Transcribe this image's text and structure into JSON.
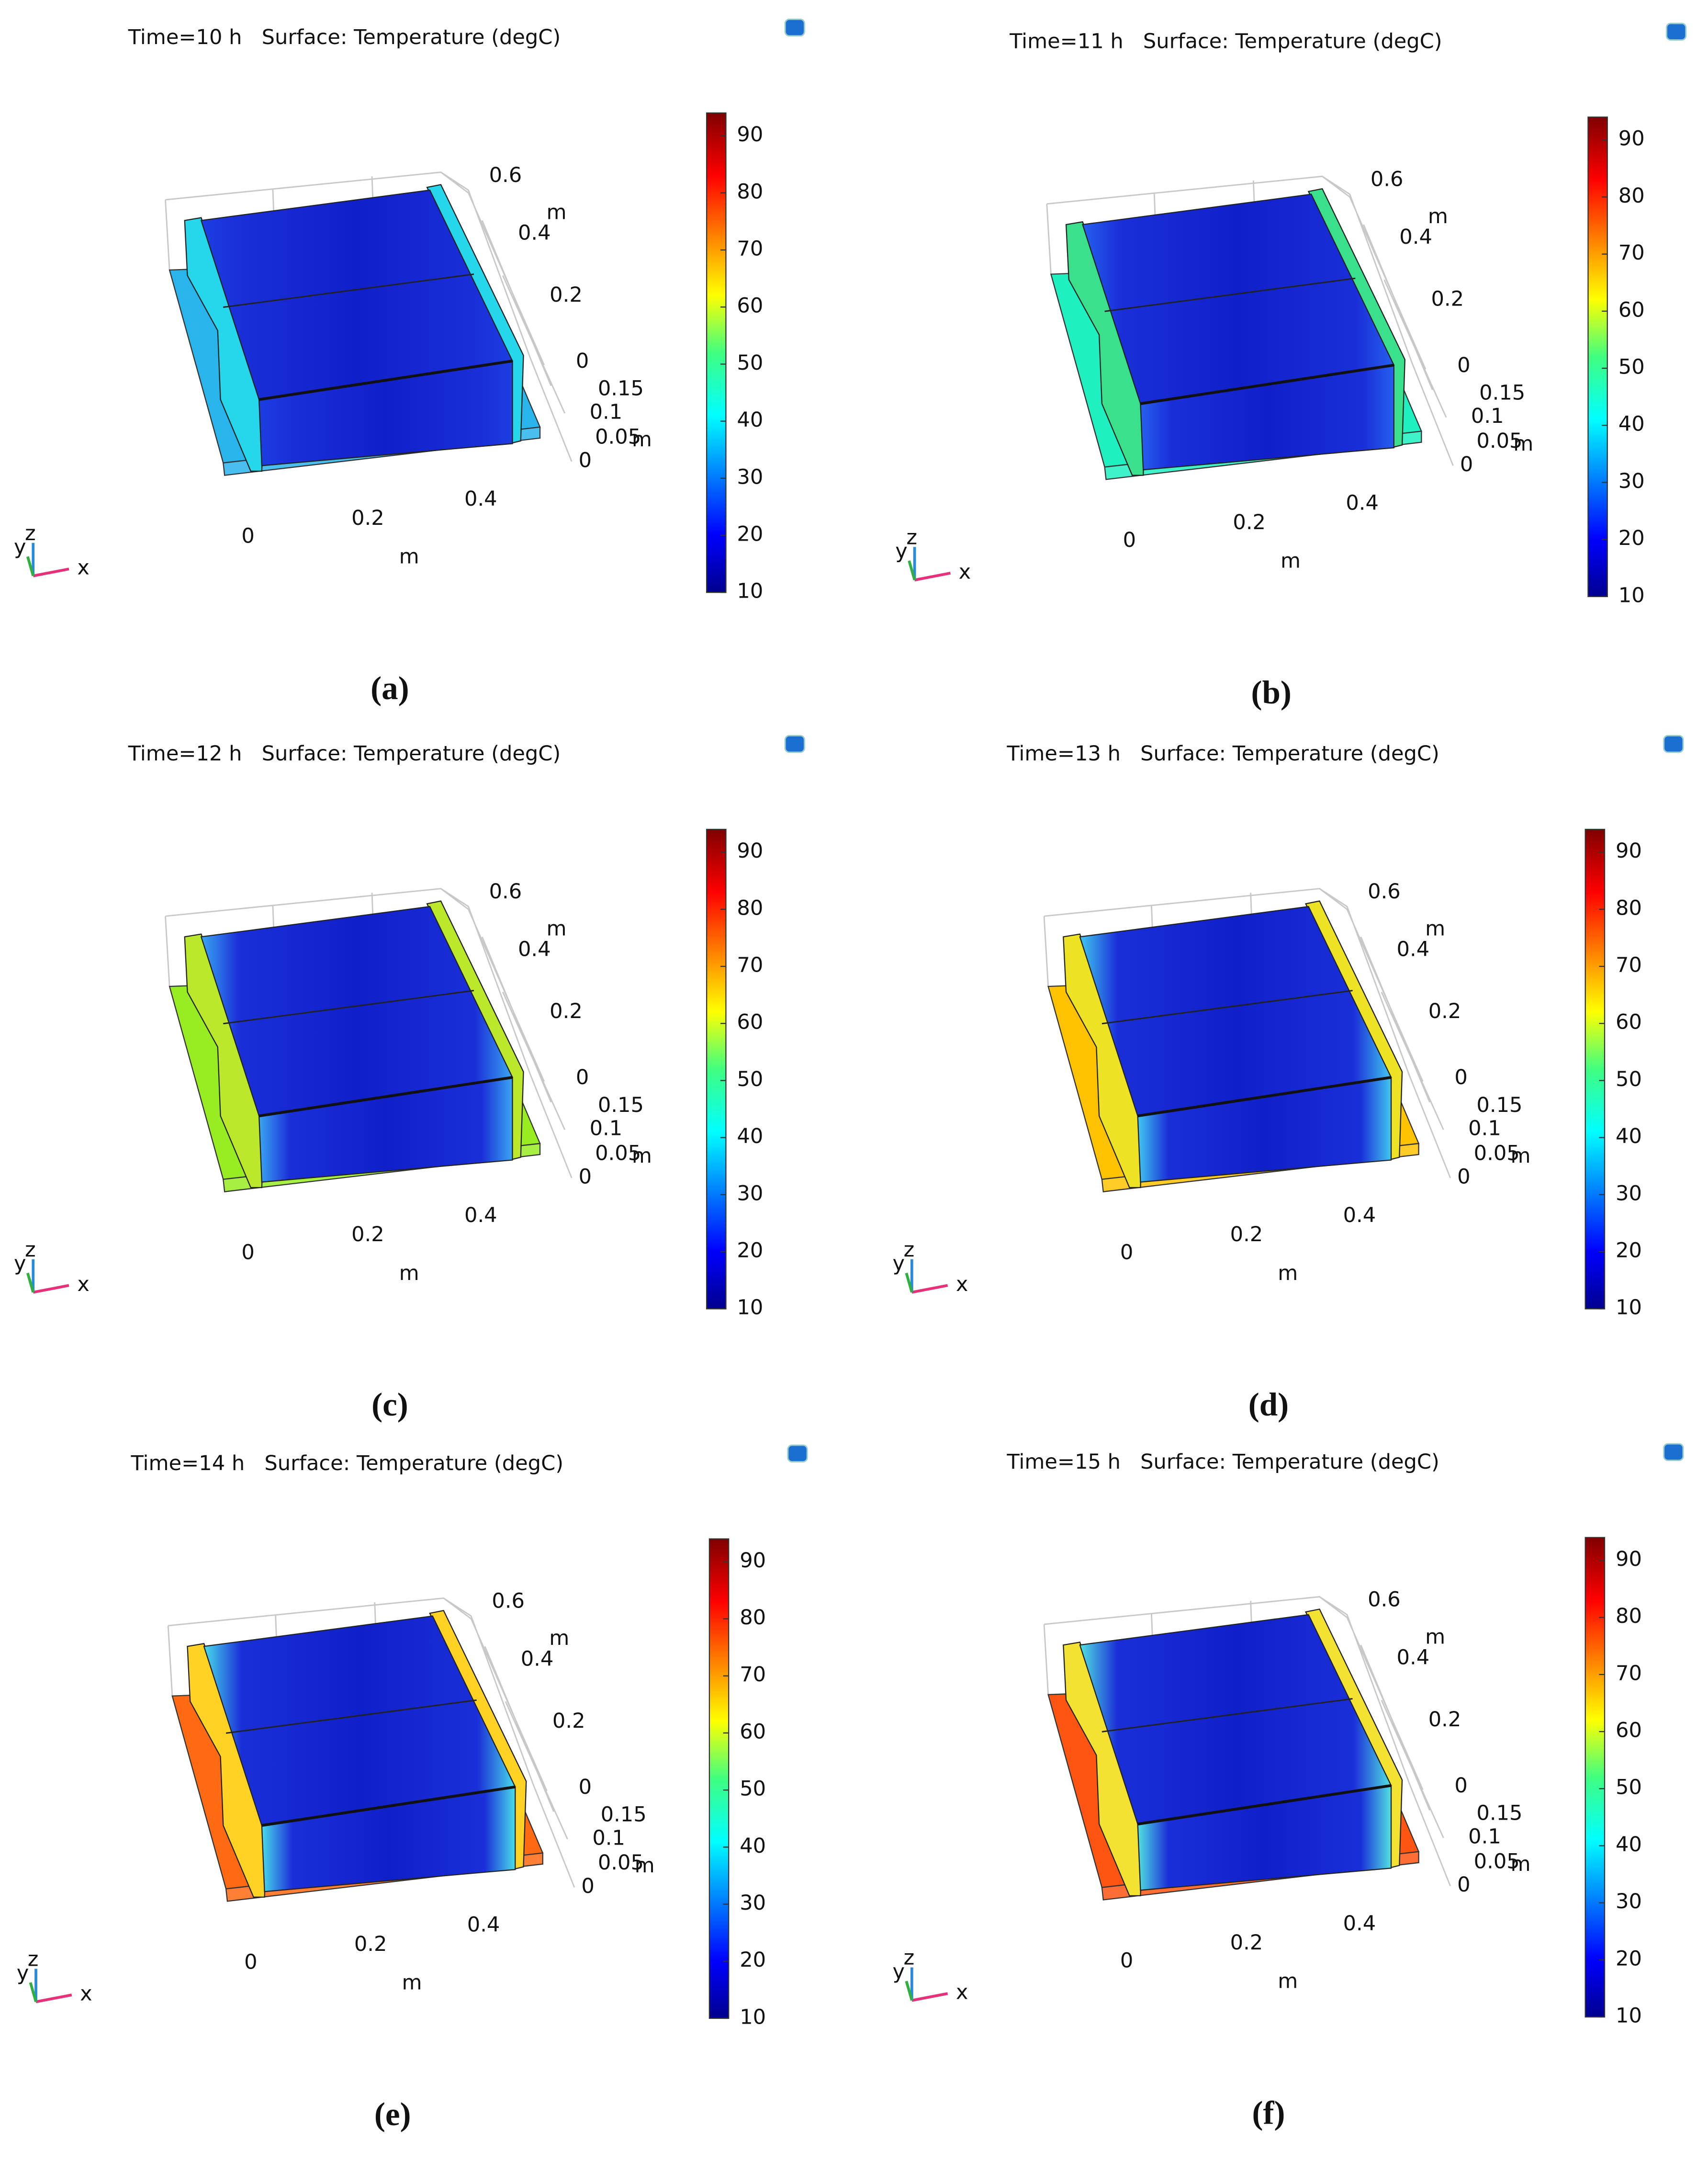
{
  "panels": [
    {
      "title": "Time=10 h   Surface: Temperature (degC)",
      "caption": "(a)",
      "colorbar_range": [
        10,
        94
      ],
      "colorbar_ticks": [
        10,
        20,
        30,
        40,
        50,
        60,
        70,
        80,
        90
      ],
      "x_ticks": [
        0,
        0.2,
        0.4
      ],
      "y_ticks": [
        0.6,
        0.4,
        0.2,
        0
      ],
      "z_ticks": [
        0.15,
        0.1,
        0.05,
        0
      ],
      "unit": "m",
      "triad": [
        "x",
        "y",
        "z"
      ],
      "plate_color": "#2ab4ec",
      "wall_color": "#26d6ea",
      "edge_color": "#1c3ee0"
    },
    {
      "title": "Time=11 h   Surface: Temperature (degC)",
      "caption": "(b)",
      "colorbar_range": [
        10,
        94
      ],
      "colorbar_ticks": [
        10,
        20,
        30,
        40,
        50,
        60,
        70,
        80,
        90
      ],
      "x_ticks": [
        0,
        0.2,
        0.4
      ],
      "y_ticks": [
        0.6,
        0.4,
        0.2,
        0
      ],
      "z_ticks": [
        0.15,
        0.1,
        0.05,
        0
      ],
      "unit": "m",
      "triad": [
        "x",
        "y",
        "z"
      ],
      "plate_color": "#1ff0c0",
      "wall_color": "#3ae08c",
      "edge_color": "#2660ee"
    },
    {
      "title": "Time=12 h   Surface: Temperature (degC)",
      "caption": "(c)",
      "colorbar_range": [
        10,
        94
      ],
      "colorbar_ticks": [
        10,
        20,
        30,
        40,
        50,
        60,
        70,
        80,
        90
      ],
      "x_ticks": [
        0,
        0.2,
        0.4
      ],
      "y_ticks": [
        0.6,
        0.4,
        0.2,
        0
      ],
      "z_ticks": [
        0.15,
        0.1,
        0.05,
        0
      ],
      "unit": "m",
      "triad": [
        "x",
        "y",
        "z"
      ],
      "plate_color": "#98ec22",
      "wall_color": "#bce82c",
      "edge_color": "#3aa6f2"
    },
    {
      "title": "Time=13 h   Surface: Temperature (degC)",
      "caption": "(d)",
      "colorbar_range": [
        10,
        94
      ],
      "colorbar_ticks": [
        10,
        20,
        30,
        40,
        50,
        60,
        70,
        80,
        90
      ],
      "x_ticks": [
        0,
        0.2,
        0.4
      ],
      "y_ticks": [
        0.6,
        0.4,
        0.2,
        0
      ],
      "z_ticks": [
        0.15,
        0.1,
        0.05,
        0
      ],
      "unit": "m",
      "triad": [
        "x",
        "y",
        "z"
      ],
      "plate_color": "#ffc200",
      "wall_color": "#eee224",
      "edge_color": "#40c8f0"
    },
    {
      "title": "Time=14 h   Surface: Temperature (degC)",
      "caption": "(e)",
      "colorbar_range": [
        10,
        94
      ],
      "colorbar_ticks": [
        10,
        20,
        30,
        40,
        50,
        60,
        70,
        80,
        90
      ],
      "x_ticks": [
        0,
        0.2,
        0.4
      ],
      "y_ticks": [
        0.6,
        0.4,
        0.2,
        0
      ],
      "z_ticks": [
        0.15,
        0.1,
        0.05,
        0
      ],
      "unit": "m",
      "triad": [
        "x",
        "y",
        "z"
      ],
      "plate_color": "#ff6a12",
      "wall_color": "#ffd224",
      "edge_color": "#48dcea"
    },
    {
      "title": "Time=15 h   Surface: Temperature (degC)",
      "caption": "(f)",
      "colorbar_range": [
        10,
        94
      ],
      "colorbar_ticks": [
        10,
        20,
        30,
        40,
        50,
        60,
        70,
        80,
        90
      ],
      "x_ticks": [
        0,
        0.2,
        0.4
      ],
      "y_ticks": [
        0.6,
        0.4,
        0.2,
        0
      ],
      "z_ticks": [
        0.15,
        0.1,
        0.05,
        0
      ],
      "unit": "m",
      "triad": [
        "x",
        "y",
        "z"
      ],
      "plate_color": "#ff5512",
      "wall_color": "#f4e232",
      "edge_color": "#50e2e0"
    }
  ]
}
